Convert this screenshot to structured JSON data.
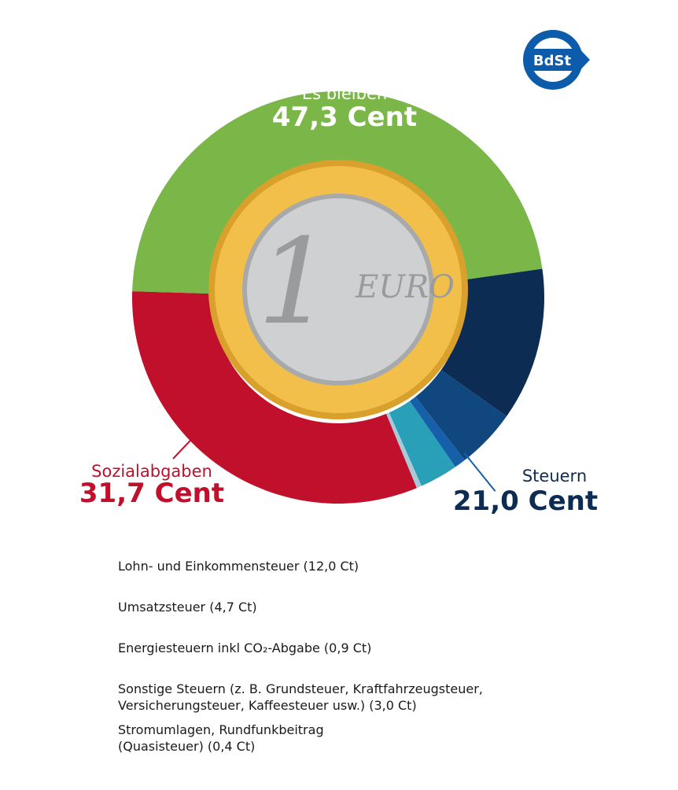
{
  "logo": "BdSt",
  "coin": {
    "numeral": "1",
    "word": "EURO"
  },
  "chart_data": {
    "type": "donut",
    "slices": [
      {
        "name": "Lohn- und Einkommensteuer (12,0 Ct)",
        "value": 12.0,
        "color": "#0d2c54"
      },
      {
        "name": "Umsatzsteuer (4,7 Ct)",
        "value": 4.7,
        "color": "#11477f"
      },
      {
        "name": "Energiesteuern inkl CO₂-Abgabe (0,9 Ct)",
        "value": 0.9,
        "color": "#1560a8"
      },
      {
        "name": "Sonstige Steuern (z. B. Grundsteuer, Kraftfahrzeugsteuer,\nVersicherungsteuer, Kaffeesteuer usw.) (3,0 Ct)",
        "value": 3.0,
        "color": "#2aa0b8"
      },
      {
        "name": "Stromumlagen, Rundfunkbeitrag\n(Quasisteuer) (0,4 Ct)",
        "value": 0.4,
        "color": "#a8c9d8"
      },
      {
        "name": "Sozialabgaben",
        "value": 31.7,
        "color": "#c0102c",
        "value_label": "31,7 Cent"
      },
      {
        "name": "Es bleiben",
        "value": 47.3,
        "color": "#7ab648",
        "value_label": "47,3 Cent"
      }
    ],
    "groups": [
      {
        "name": "Steuern",
        "value": 21.0,
        "value_label": "21,0 Cent",
        "color": "#0d2c54"
      }
    ]
  }
}
